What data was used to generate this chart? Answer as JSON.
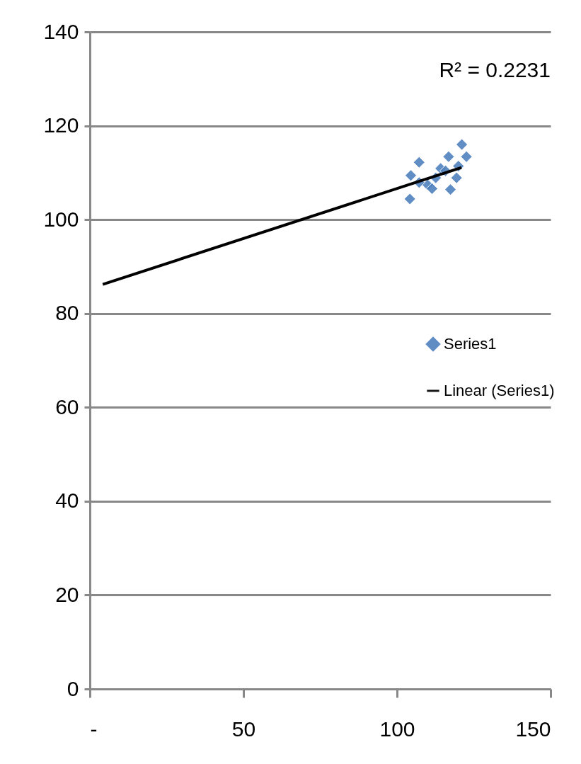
{
  "chart_data": {
    "type": "scatter",
    "series": [
      {
        "name": "Series1",
        "color": "#4f81bd",
        "marker": "diamond",
        "x": [
          104.2,
          107.2,
          104.5,
          110,
          112.6,
          114.2,
          116.8,
          121.1,
          122.6,
          117.4,
          119.4,
          111.4,
          107.2,
          115.8,
          120
        ],
        "values": [
          104.4,
          112.2,
          109.4,
          107.4,
          108.9,
          110.9,
          113.4,
          116,
          113.4,
          106.4,
          108.9,
          106.6,
          107.9,
          110.4,
          111.4
        ]
      },
      {
        "name": "Linear (Series1)",
        "type": "line",
        "color": "#000000",
        "line_style": "solid",
        "marker": "none",
        "x": [
          4.2,
          121
        ],
        "values": [
          86.2,
          111.1
        ]
      }
    ],
    "xlim": [
      0,
      150
    ],
    "xticks": [
      {
        "value": 0,
        "label": "-"
      },
      50,
      100,
      150
    ],
    "ylim": [
      0,
      140
    ],
    "yticks": [
      0,
      20,
      40,
      60,
      80,
      100,
      120,
      140
    ],
    "grid": "y",
    "legend": "right",
    "annotations": [
      "R² = 0.2231"
    ]
  }
}
